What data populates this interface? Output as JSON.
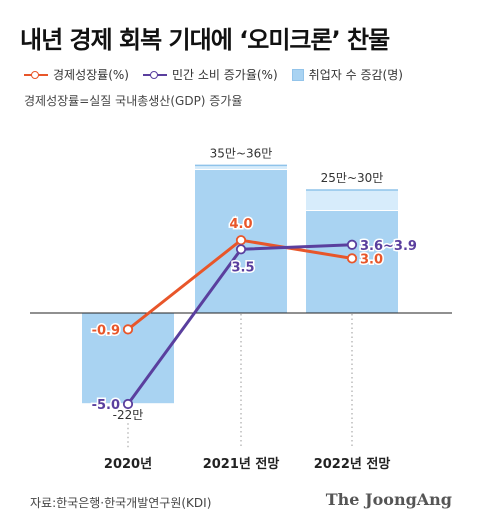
{
  "title": "내년 경제 회복 기대에 ‘오미크론’ 찬물",
  "legend": {
    "gdp": "경제성장률(%)",
    "consumption": "민간 소비 증가율(%)",
    "employment": "취업자 수 증감(명)"
  },
  "note": "경제성장률=실질 국내총생산(GDP) 증가율",
  "source": "자료:한국은행·한국개발연구원(KDI)",
  "brand": "The JoongAng",
  "colors": {
    "gdp": "#e8562a",
    "consumption": "#5a3f9e",
    "bar": "#a9d3f2",
    "bar_light": "#d7ecfb"
  },
  "chart_data": {
    "type": "bar+line",
    "categories": [
      "2020년",
      "2021년 전망",
      "2022년 전망"
    ],
    "employment": {
      "name": "취업자 수 증감(명)",
      "unit": "만",
      "values": [
        -22,
        35,
        25
      ],
      "ranges": [
        null,
        [
          35,
          36
        ],
        [
          25,
          30
        ]
      ],
      "labels": [
        "-22만",
        "35만~36만",
        "25만~30만"
      ]
    },
    "series": [
      {
        "name": "경제성장률(%)",
        "values": [
          -0.9,
          4.0,
          3.0
        ],
        "labels": [
          "-0.9",
          "4.0",
          "3.0"
        ]
      },
      {
        "name": "민간 소비 증가율(%)",
        "values": [
          -5.0,
          3.5,
          3.75
        ],
        "ranges": [
          null,
          null,
          [
            3.6,
            3.9
          ]
        ],
        "labels": [
          "-5.0",
          "3.5",
          "3.6~3.9"
        ]
      }
    ]
  }
}
